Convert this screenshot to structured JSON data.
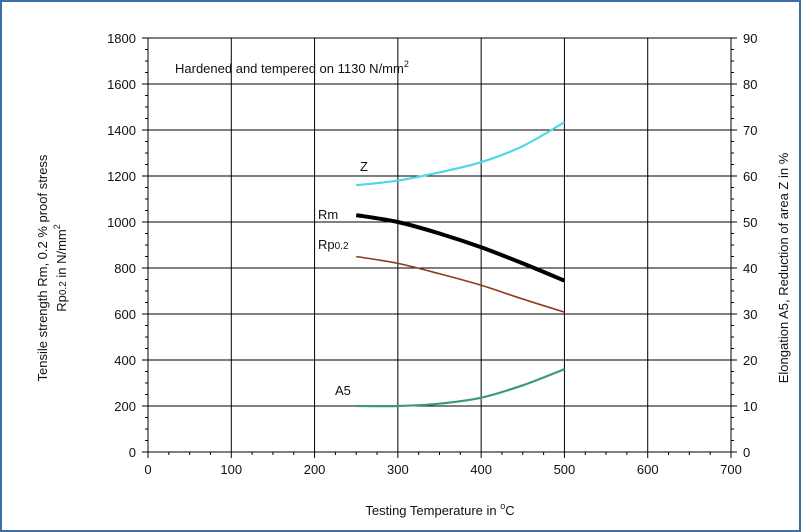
{
  "chart_data": {
    "type": "line",
    "annotation": {
      "main": "Hardened and tempered on 1130 N/mm",
      "sup": "2"
    },
    "xlabel": {
      "main": "Testing Temperature in ",
      "sup": "o",
      "tail": "C"
    },
    "ylabel_left": {
      "line1": "Tensile strength Rm, 0.2 % proof stress",
      "line2_parts": [
        "Rp",
        "0.2",
        " in N/mm",
        "2"
      ]
    },
    "ylabel_right": "Elongation A5, Reduction of area Z in %",
    "xlim": [
      0,
      700
    ],
    "ylim_left": [
      0,
      1800
    ],
    "ylim_right": [
      0,
      90
    ],
    "x_ticks": [
      "0",
      "100",
      "200",
      "300",
      "400",
      "500",
      "600",
      "700"
    ],
    "y_left_ticks": [
      "0",
      "200",
      "400",
      "600",
      "800",
      "1000",
      "1200",
      "1400",
      "1600",
      "1800"
    ],
    "y_right_ticks": [
      "0",
      "10",
      "20",
      "30",
      "40",
      "50",
      "60",
      "70",
      "80",
      "90"
    ],
    "grid": true,
    "series": [
      {
        "name": "Z",
        "axis": "right",
        "color": "#4fd8e4",
        "width": 2.2,
        "x": [
          250,
          300,
          350,
          400,
          450,
          500
        ],
        "y": [
          58,
          59,
          60.8,
          63,
          66.5,
          71.7
        ]
      },
      {
        "name": "Rm",
        "axis": "left",
        "color": "#000000",
        "width": 4,
        "x": [
          250,
          300,
          350,
          400,
          450,
          500
        ],
        "y": [
          1030,
          1000,
          950,
          890,
          820,
          745
        ]
      },
      {
        "name": "Rp0.2",
        "axis": "left",
        "color": "#8b3a1a",
        "width": 1.6,
        "x": [
          250,
          300,
          350,
          400,
          450,
          500
        ],
        "y": [
          850,
          820,
          775,
          725,
          665,
          608
        ]
      },
      {
        "name": "A5",
        "axis": "right",
        "color": "#3e9a74",
        "width": 2.2,
        "x": [
          250,
          300,
          350,
          400,
          450,
          500
        ],
        "y": [
          10,
          10,
          10.5,
          11.8,
          14.5,
          18
        ]
      }
    ],
    "series_labels": {
      "Z": "Z",
      "Rm": "Rm",
      "Rp_main": "Rp",
      "Rp_sub": "0.2",
      "A5": "A5"
    }
  }
}
